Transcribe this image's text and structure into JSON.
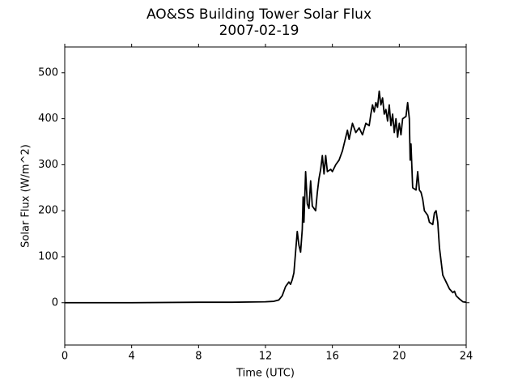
{
  "chart_data": {
    "type": "line",
    "title": "AO&SS Building Tower Solar Flux",
    "subtitle": "2007-02-19",
    "x_label": "Time (UTC)",
    "y_label": "Solar Flux (W/m^2)",
    "xlim": [
      0,
      24
    ],
    "xticks": [
      0,
      4,
      8,
      12,
      16,
      20,
      24
    ],
    "ylim": [
      -92,
      556
    ],
    "yticks": [
      0,
      100,
      200,
      300,
      400,
      500
    ],
    "grid": false,
    "series": [
      {
        "name": "Solar Flux",
        "color": "#000000",
        "x": [
          0,
          4,
          8,
          10,
          12,
          12.5,
          12.8,
          13.0,
          13.2,
          13.4,
          13.5,
          13.6,
          13.7,
          13.8,
          13.9,
          14.0,
          14.1,
          14.2,
          14.25,
          14.3,
          14.4,
          14.5,
          14.6,
          14.7,
          14.8,
          15.0,
          15.1,
          15.2,
          15.3,
          15.4,
          15.5,
          15.6,
          15.7,
          15.9,
          16.0,
          16.2,
          16.4,
          16.6,
          16.8,
          16.9,
          17.0,
          17.2,
          17.4,
          17.6,
          17.8,
          18.0,
          18.2,
          18.3,
          18.4,
          18.5,
          18.6,
          18.7,
          18.8,
          18.9,
          19.0,
          19.1,
          19.2,
          19.3,
          19.4,
          19.5,
          19.6,
          19.7,
          19.8,
          19.9,
          20.0,
          20.1,
          20.2,
          20.4,
          20.5,
          20.6,
          20.65,
          20.7,
          20.8,
          21.0,
          21.1,
          21.2,
          21.3,
          21.4,
          21.5,
          21.7,
          21.8,
          22.0,
          22.1,
          22.2,
          22.3,
          22.4,
          22.5,
          22.6,
          22.8,
          23.0,
          23.2,
          23.3,
          23.4,
          23.6,
          23.8,
          24
        ],
        "values": [
          0,
          0,
          1,
          1,
          2,
          3,
          6,
          15,
          35,
          45,
          40,
          50,
          65,
          110,
          155,
          125,
          110,
          160,
          230,
          175,
          285,
          215,
          205,
          265,
          210,
          200,
          240,
          270,
          290,
          320,
          280,
          320,
          285,
          290,
          285,
          300,
          310,
          330,
          360,
          375,
          355,
          390,
          370,
          380,
          365,
          390,
          385,
          410,
          430,
          415,
          435,
          425,
          460,
          430,
          445,
          410,
          420,
          395,
          430,
          385,
          410,
          370,
          400,
          360,
          390,
          365,
          400,
          405,
          435,
          400,
          310,
          345,
          250,
          245,
          285,
          245,
          240,
          225,
          200,
          190,
          175,
          170,
          195,
          200,
          175,
          120,
          90,
          60,
          45,
          30,
          22,
          25,
          15,
          8,
          2,
          1
        ]
      }
    ]
  }
}
